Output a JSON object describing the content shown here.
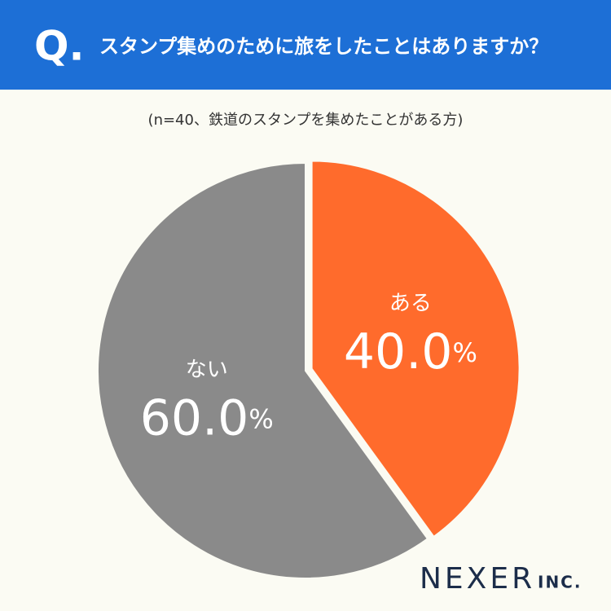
{
  "header": {
    "mark": "Q."
  },
  "chart_data": {
    "type": "pie",
    "title": "スタンプ集めのために旅をしたことはありますか？",
    "subtitle": "(n=40、鉄道のスタンプを集めたことがある方)",
    "categories": [
      "ある",
      "ない"
    ],
    "values": [
      40.0,
      60.0
    ],
    "value_labels": [
      "40.0%",
      "60.0%"
    ],
    "colors": [
      "#ff6b2c",
      "#8a8a8a"
    ],
    "exploded": [
      true,
      false
    ]
  },
  "footer": {
    "logo": "NEXER",
    "logo_suffix": "INC."
  }
}
